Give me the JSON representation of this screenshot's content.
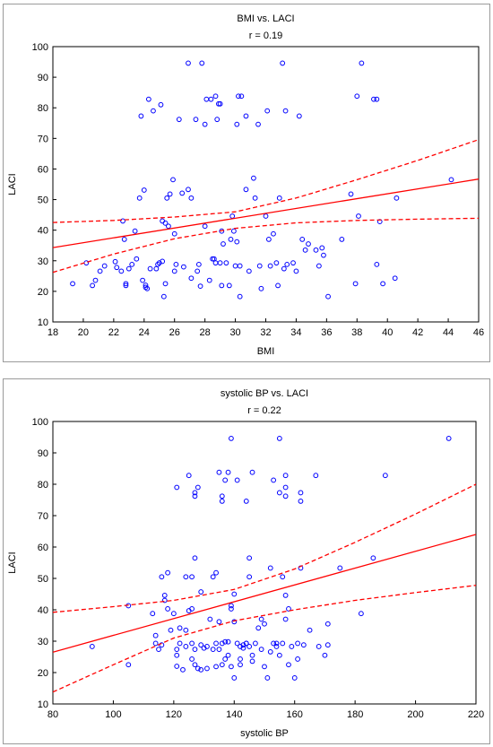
{
  "colors": {
    "points": "#0000ff",
    "fit_line": "#ff0000",
    "frame": "#000000"
  },
  "chart_data": [
    {
      "type": "scatter",
      "title": "BMI vs. LACI",
      "subtitle": "r = 0.19",
      "xlabel": "BMI",
      "ylabel": "LACI",
      "xlim": [
        18,
        46
      ],
      "ylim": [
        10,
        100
      ],
      "xticks": [
        18,
        20,
        22,
        24,
        26,
        28,
        30,
        32,
        34,
        36,
        38,
        40,
        42,
        44,
        46
      ],
      "yticks": [
        10,
        20,
        30,
        40,
        50,
        60,
        70,
        80,
        90,
        100
      ],
      "grid": false,
      "marker": "open-circle",
      "fit": {
        "line": [
          [
            18,
            34.3
          ],
          [
            46,
            56.7
          ]
        ],
        "ci_upper": [
          [
            18,
            42.5
          ],
          [
            22,
            43.2
          ],
          [
            26,
            44.3
          ],
          [
            30,
            46.0
          ],
          [
            34,
            50.5
          ],
          [
            38,
            56.5
          ],
          [
            42,
            62.8
          ],
          [
            46,
            69.6
          ]
        ],
        "ci_lower": [
          [
            18,
            26.2
          ],
          [
            22,
            32.2
          ],
          [
            26,
            37.2
          ],
          [
            30,
            40.6
          ],
          [
            34,
            42.4
          ],
          [
            38,
            43.2
          ],
          [
            42,
            43.6
          ],
          [
            46,
            43.9
          ]
        ]
      },
      "points": [
        [
          19.3,
          22.5
        ],
        [
          20.2,
          29.3
        ],
        [
          20.6,
          21.9
        ],
        [
          20.8,
          23.6
        ],
        [
          21.1,
          26.6
        ],
        [
          21.4,
          28.3
        ],
        [
          22.1,
          29.7
        ],
        [
          22.2,
          27.8
        ],
        [
          22.5,
          26.6
        ],
        [
          22.6,
          43.0
        ],
        [
          22.7,
          37.0
        ],
        [
          22.8,
          22.5
        ],
        [
          22.8,
          21.9
        ],
        [
          23.0,
          27.4
        ],
        [
          23.2,
          28.8
        ],
        [
          23.4,
          39.7
        ],
        [
          23.5,
          30.6
        ],
        [
          23.7,
          50.5
        ],
        [
          23.8,
          77.3
        ],
        [
          23.9,
          23.6
        ],
        [
          24.0,
          53.1
        ],
        [
          24.1,
          22.0
        ],
        [
          24.1,
          21.3
        ],
        [
          24.2,
          20.9
        ],
        [
          24.3,
          82.8
        ],
        [
          24.4,
          27.4
        ],
        [
          24.6,
          79.0
        ],
        [
          24.8,
          27.4
        ],
        [
          24.9,
          28.8
        ],
        [
          25.0,
          29.3
        ],
        [
          25.1,
          81.0
        ],
        [
          25.2,
          29.8
        ],
        [
          25.2,
          43.0
        ],
        [
          25.3,
          18.3
        ],
        [
          25.4,
          42.3
        ],
        [
          25.4,
          22.5
        ],
        [
          25.5,
          50.5
        ],
        [
          25.6,
          41.3
        ],
        [
          25.7,
          51.8
        ],
        [
          25.9,
          56.5
        ],
        [
          26.0,
          26.6
        ],
        [
          26.0,
          38.8
        ],
        [
          26.1,
          28.8
        ],
        [
          26.3,
          76.2
        ],
        [
          26.5,
          52.1
        ],
        [
          26.6,
          28.0
        ],
        [
          26.9,
          53.3
        ],
        [
          26.9,
          94.6
        ],
        [
          27.1,
          50.5
        ],
        [
          27.1,
          24.3
        ],
        [
          27.4,
          76.2
        ],
        [
          27.5,
          26.6
        ],
        [
          27.6,
          28.8
        ],
        [
          27.7,
          21.7
        ],
        [
          27.8,
          94.6
        ],
        [
          28.0,
          74.6
        ],
        [
          28.0,
          41.3
        ],
        [
          28.1,
          82.8
        ],
        [
          28.3,
          23.6
        ],
        [
          28.4,
          82.8
        ],
        [
          28.5,
          30.6
        ],
        [
          28.6,
          30.6
        ],
        [
          28.7,
          29.3
        ],
        [
          28.7,
          83.8
        ],
        [
          28.8,
          76.2
        ],
        [
          28.9,
          81.3
        ],
        [
          29.0,
          29.3
        ],
        [
          29.0,
          81.3
        ],
        [
          29.1,
          21.9
        ],
        [
          29.1,
          39.7
        ],
        [
          29.2,
          35.5
        ],
        [
          29.4,
          29.3
        ],
        [
          29.6,
          21.9
        ],
        [
          29.7,
          37.0
        ],
        [
          29.8,
          44.6
        ],
        [
          29.9,
          39.7
        ],
        [
          30.0,
          28.3
        ],
        [
          30.1,
          74.6
        ],
        [
          30.1,
          36.2
        ],
        [
          30.2,
          83.8
        ],
        [
          30.3,
          18.3
        ],
        [
          30.3,
          28.3
        ],
        [
          30.4,
          83.8
        ],
        [
          30.7,
          53.3
        ],
        [
          30.7,
          77.3
        ],
        [
          30.9,
          26.6
        ],
        [
          31.2,
          57.0
        ],
        [
          31.3,
          50.5
        ],
        [
          31.5,
          74.6
        ],
        [
          31.6,
          28.3
        ],
        [
          31.7,
          20.9
        ],
        [
          32.0,
          44.6
        ],
        [
          32.1,
          79.0
        ],
        [
          32.2,
          37.0
        ],
        [
          32.3,
          28.3
        ],
        [
          32.5,
          38.8
        ],
        [
          32.7,
          29.3
        ],
        [
          32.8,
          21.9
        ],
        [
          32.9,
          50.5
        ],
        [
          33.1,
          94.6
        ],
        [
          33.2,
          27.4
        ],
        [
          33.3,
          79.0
        ],
        [
          33.4,
          28.8
        ],
        [
          33.8,
          29.3
        ],
        [
          34.0,
          26.6
        ],
        [
          34.2,
          77.3
        ],
        [
          34.4,
          37.0
        ],
        [
          34.6,
          33.5
        ],
        [
          34.8,
          35.5
        ],
        [
          35.3,
          33.5
        ],
        [
          35.5,
          28.3
        ],
        [
          35.7,
          34.2
        ],
        [
          35.8,
          31.8
        ],
        [
          36.1,
          18.3
        ],
        [
          37.0,
          37.0
        ],
        [
          37.6,
          51.8
        ],
        [
          37.9,
          22.5
        ],
        [
          38.0,
          83.8
        ],
        [
          38.1,
          44.6
        ],
        [
          38.3,
          94.6
        ],
        [
          39.1,
          82.8
        ],
        [
          39.3,
          82.8
        ],
        [
          39.3,
          28.8
        ],
        [
          39.5,
          42.8
        ],
        [
          39.7,
          22.5
        ],
        [
          40.5,
          24.3
        ],
        [
          40.6,
          50.5
        ],
        [
          44.2,
          56.5
        ]
      ]
    },
    {
      "type": "scatter",
      "title": "systolic BP vs. LACI",
      "subtitle": "r = 0.22",
      "xlabel": "systolic BP",
      "ylabel": "LACI",
      "xlim": [
        80,
        220
      ],
      "ylim": [
        10,
        100
      ],
      "xticks": [
        80,
        100,
        120,
        140,
        160,
        180,
        200,
        220
      ],
      "yticks": [
        10,
        20,
        30,
        40,
        50,
        60,
        70,
        80,
        90,
        100
      ],
      "grid": false,
      "marker": "open-circle",
      "fit": {
        "line": [
          [
            80,
            26.5
          ],
          [
            220,
            64.0
          ]
        ],
        "ci_upper": [
          [
            80,
            39.2
          ],
          [
            100,
            41.0
          ],
          [
            120,
            43.0
          ],
          [
            140,
            46.5
          ],
          [
            160,
            53.0
          ],
          [
            180,
            61.5
          ],
          [
            200,
            70.5
          ],
          [
            220,
            80.0
          ]
        ],
        "ci_lower": [
          [
            80,
            13.8
          ],
          [
            100,
            22.5
          ],
          [
            120,
            31.0
          ],
          [
            140,
            36.5
          ],
          [
            160,
            40.0
          ],
          [
            180,
            43.0
          ],
          [
            200,
            45.5
          ],
          [
            220,
            47.8
          ]
        ]
      },
      "points": [
        [
          93,
          28.3
        ],
        [
          105,
          22.5
        ],
        [
          105,
          41.3
        ],
        [
          113,
          38.8
        ],
        [
          114,
          29.3
        ],
        [
          114,
          31.8
        ],
        [
          115,
          27.4
        ],
        [
          116,
          50.5
        ],
        [
          116,
          28.8
        ],
        [
          117,
          43.0
        ],
        [
          117,
          44.6
        ],
        [
          118,
          40.3
        ],
        [
          118,
          51.8
        ],
        [
          119,
          33.5
        ],
        [
          120,
          38.8
        ],
        [
          121,
          79.0
        ],
        [
          121,
          27.4
        ],
        [
          121,
          25.5
        ],
        [
          121,
          22.0
        ],
        [
          122,
          29.3
        ],
        [
          122,
          34.2
        ],
        [
          123,
          20.9
        ],
        [
          124,
          50.5
        ],
        [
          124,
          33.5
        ],
        [
          124,
          28.3
        ],
        [
          125,
          82.8
        ],
        [
          125,
          39.7
        ],
        [
          126,
          40.3
        ],
        [
          126,
          50.5
        ],
        [
          126,
          29.3
        ],
        [
          126,
          24.3
        ],
        [
          127,
          77.3
        ],
        [
          127,
          76.2
        ],
        [
          127,
          56.5
        ],
        [
          127,
          27.4
        ],
        [
          127,
          22.5
        ],
        [
          128,
          79.0
        ],
        [
          128,
          21.3
        ],
        [
          129,
          28.8
        ],
        [
          129,
          20.9
        ],
        [
          129,
          45.7
        ],
        [
          130,
          27.8
        ],
        [
          131,
          21.3
        ],
        [
          131,
          28.3
        ],
        [
          132,
          37.0
        ],
        [
          133,
          27.4
        ],
        [
          133,
          50.5
        ],
        [
          134,
          29.3
        ],
        [
          134,
          21.9
        ],
        [
          134,
          51.8
        ],
        [
          135,
          83.8
        ],
        [
          135,
          27.4
        ],
        [
          135,
          36.2
        ],
        [
          136,
          76.2
        ],
        [
          136,
          74.6
        ],
        [
          136,
          29.3
        ],
        [
          136,
          22.5
        ],
        [
          137,
          81.3
        ],
        [
          137,
          29.8
        ],
        [
          137,
          24.3
        ],
        [
          138,
          83.8
        ],
        [
          138,
          29.8
        ],
        [
          138,
          25.5
        ],
        [
          139,
          94.6
        ],
        [
          139,
          21.9
        ],
        [
          139,
          41.3
        ],
        [
          139,
          40.3
        ],
        [
          140,
          18.3
        ],
        [
          140,
          45.0
        ],
        [
          140,
          36.2
        ],
        [
          141,
          81.3
        ],
        [
          141,
          29.3
        ],
        [
          142,
          28.3
        ],
        [
          142,
          24.3
        ],
        [
          142,
          22.5
        ],
        [
          143,
          27.8
        ],
        [
          143,
          28.8
        ],
        [
          144,
          29.3
        ],
        [
          144,
          74.6
        ],
        [
          144,
          29.3
        ],
        [
          145,
          28.3
        ],
        [
          145,
          56.5
        ],
        [
          145,
          50.5
        ],
        [
          146,
          25.5
        ],
        [
          146,
          83.8
        ],
        [
          146,
          23.6
        ],
        [
          147,
          29.3
        ],
        [
          148,
          34.2
        ],
        [
          149,
          37.0
        ],
        [
          149,
          27.4
        ],
        [
          150,
          35.5
        ],
        [
          150,
          21.9
        ],
        [
          151,
          18.3
        ],
        [
          152,
          26.6
        ],
        [
          152,
          53.3
        ],
        [
          153,
          81.3
        ],
        [
          153,
          29.3
        ],
        [
          154,
          28.3
        ],
        [
          154,
          29.3
        ],
        [
          155,
          77.3
        ],
        [
          155,
          25.5
        ],
        [
          155,
          94.6
        ],
        [
          156,
          50.5
        ],
        [
          156,
          29.3
        ],
        [
          157,
          79.0
        ],
        [
          157,
          76.2
        ],
        [
          157,
          82.8
        ],
        [
          157,
          44.6
        ],
        [
          157,
          37.0
        ],
        [
          158,
          22.5
        ],
        [
          158,
          40.3
        ],
        [
          159,
          28.3
        ],
        [
          160,
          18.3
        ],
        [
          161,
          29.3
        ],
        [
          161,
          24.3
        ],
        [
          162,
          53.3
        ],
        [
          162,
          77.3
        ],
        [
          162,
          74.6
        ],
        [
          163,
          28.8
        ],
        [
          165,
          33.5
        ],
        [
          167,
          82.8
        ],
        [
          168,
          28.3
        ],
        [
          170,
          25.5
        ],
        [
          171,
          35.5
        ],
        [
          171,
          28.8
        ],
        [
          175,
          53.3
        ],
        [
          182,
          38.8
        ],
        [
          186,
          56.5
        ],
        [
          190,
          82.8
        ],
        [
          211,
          94.6
        ]
      ]
    }
  ]
}
